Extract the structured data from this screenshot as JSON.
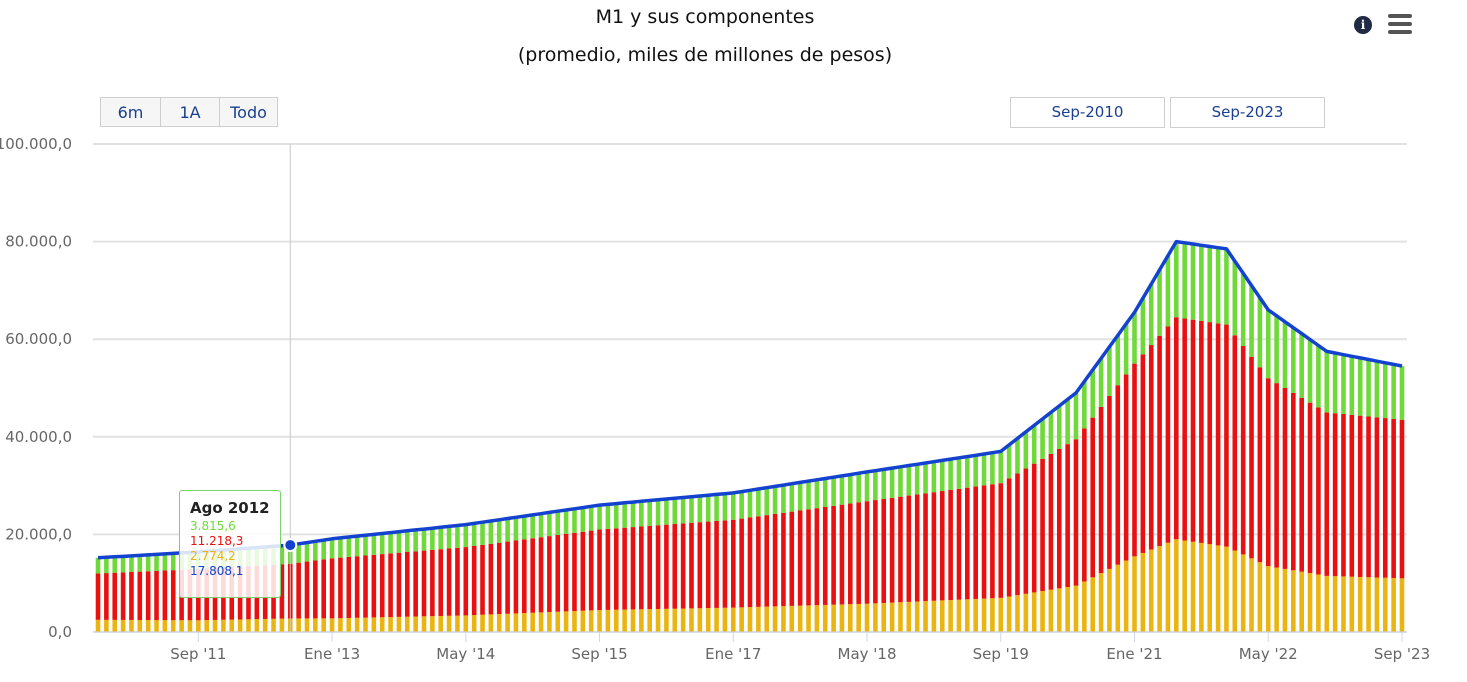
{
  "header": {
    "title": "M1 y sus componentes",
    "subtitle": "(promedio, miles de millones de pesos)"
  },
  "toolbar": {
    "info_icon": "info-icon",
    "menu_icon": "hamburger-menu-icon",
    "range_buttons": [
      "6m",
      "1A",
      "Todo"
    ],
    "date_from": "Sep-2010",
    "date_to": "Sep-2023"
  },
  "colors": {
    "green": "#6fd93a",
    "red": "#e81010",
    "yellow": "#eab512",
    "line": "#1342d0",
    "grid": "#e2e2e2",
    "axis_text": "#666666"
  },
  "tooltip": {
    "title": "Ago 2012",
    "rows": [
      {
        "value": "3.815,6",
        "color": "#6fd93a"
      },
      {
        "value": "11.218,3",
        "color": "#e81010"
      },
      {
        "value": "2.774,2",
        "color": "#eab512"
      },
      {
        "value": "17.808,1",
        "color": "#1342d0"
      }
    ]
  },
  "chart_data": {
    "type": "bar",
    "stacked": true,
    "title": "M1 y sus componentes",
    "subtitle": "(promedio, miles de millones de pesos)",
    "x_start": "Sep-2010",
    "x_end": "Sep-2023",
    "x_step_months": 1,
    "ylim": [
      0,
      100000
    ],
    "y_ticks": [
      0,
      20000,
      40000,
      60000,
      80000,
      100000
    ],
    "y_tick_labels": [
      "0,0",
      "20.000,0",
      "40.000,0",
      "60.000,0",
      "80.000,0",
      "100.000,0"
    ],
    "x_ticks": [
      {
        "label": "Sep '11",
        "date": "2011-09"
      },
      {
        "label": "Ene '13",
        "date": "2013-01"
      },
      {
        "label": "May '14",
        "date": "2014-05"
      },
      {
        "label": "Sep '15",
        "date": "2015-09"
      },
      {
        "label": "Ene '17",
        "date": "2017-01"
      },
      {
        "label": "May '18",
        "date": "2018-05"
      },
      {
        "label": "Sep '19",
        "date": "2019-09"
      },
      {
        "label": "Ene '21",
        "date": "2021-01"
      },
      {
        "label": "May '22",
        "date": "2022-05"
      },
      {
        "label": "Sep '23",
        "date": "2023-09"
      }
    ],
    "grid": true,
    "legend": "none",
    "anchors": {
      "yellow": [
        [
          "2010-09",
          2500
        ],
        [
          "2011-09",
          2400
        ],
        [
          "2012-08",
          2774
        ],
        [
          "2013-01",
          2800
        ],
        [
          "2014-05",
          3400
        ],
        [
          "2015-09",
          4500
        ],
        [
          "2017-01",
          5000
        ],
        [
          "2018-05",
          5800
        ],
        [
          "2019-09",
          7000
        ],
        [
          "2020-06",
          9500
        ],
        [
          "2021-01",
          15500
        ],
        [
          "2021-06",
          19000
        ],
        [
          "2021-12",
          17500
        ],
        [
          "2022-05",
          13500
        ],
        [
          "2022-12",
          11500
        ],
        [
          "2023-09",
          11000
        ]
      ],
      "red": [
        [
          "2010-09",
          9500
        ],
        [
          "2011-09",
          10500
        ],
        [
          "2012-08",
          11218
        ],
        [
          "2013-01",
          12300
        ],
        [
          "2014-05",
          14000
        ],
        [
          "2015-09",
          16500
        ],
        [
          "2017-01",
          18000
        ],
        [
          "2018-05",
          21000
        ],
        [
          "2019-09",
          23500
        ],
        [
          "2020-06",
          30000
        ],
        [
          "2021-01",
          39500
        ],
        [
          "2021-06",
          45500
        ],
        [
          "2021-12",
          45500
        ],
        [
          "2022-05",
          38500
        ],
        [
          "2022-12",
          33500
        ],
        [
          "2023-09",
          32500
        ]
      ],
      "green": [
        [
          "2010-09",
          3200
        ],
        [
          "2011-09",
          3500
        ],
        [
          "2012-08",
          3816
        ],
        [
          "2013-01",
          4000
        ],
        [
          "2014-05",
          4600
        ],
        [
          "2015-09",
          5000
        ],
        [
          "2017-01",
          5500
        ],
        [
          "2018-05",
          6000
        ],
        [
          "2019-09",
          6500
        ],
        [
          "2020-06",
          9500
        ],
        [
          "2021-01",
          10500
        ],
        [
          "2021-06",
          15500
        ],
        [
          "2021-12",
          15500
        ],
        [
          "2022-05",
          14000
        ],
        [
          "2022-12",
          12500
        ],
        [
          "2023-09",
          11000
        ]
      ]
    },
    "series": [
      {
        "color": "#6fd93a"
      },
      {
        "color": "#e81010"
      },
      {
        "color": "#eab512"
      },
      {
        "type": "line",
        "color": "#1342d0",
        "equals": "sum of components"
      }
    ]
  }
}
